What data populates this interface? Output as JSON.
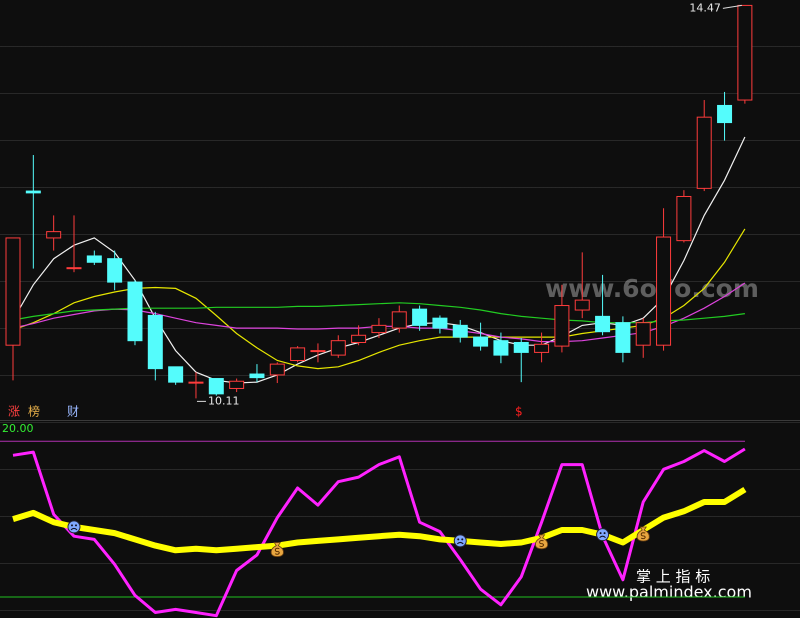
{
  "chart_data": [
    {
      "type": "candlestick",
      "up_color": "#ff3c3c",
      "down_color": "#54fcfc",
      "ylim": [
        9.87,
        14.53
      ],
      "open": [
        10.7,
        12.41,
        11.89,
        11.55,
        11.69,
        11.66,
        11.4,
        11.03,
        10.46,
        10.28,
        10.33,
        10.22,
        10.38,
        10.37,
        10.53,
        10.63,
        10.59,
        10.73,
        10.84,
        10.89,
        11.1,
        11.0,
        10.92,
        10.79,
        10.75,
        10.73,
        10.62,
        10.69,
        11.09,
        11.02,
        10.95,
        10.7,
        10.7,
        11.86,
        12.44,
        13.36,
        13.42
      ],
      "high": [
        11.89,
        12.81,
        12.14,
        12.14,
        11.75,
        11.75,
        11.42,
        11.07,
        10.46,
        10.4,
        10.33,
        10.33,
        10.49,
        10.51,
        10.69,
        10.72,
        10.81,
        10.92,
        11.0,
        11.14,
        11.14,
        11.03,
        10.98,
        10.95,
        10.84,
        10.78,
        10.84,
        11.37,
        11.73,
        11.48,
        11.02,
        11.0,
        12.22,
        12.42,
        13.42,
        13.51,
        14.47
      ],
      "low": [
        10.31,
        11.55,
        11.75,
        11.51,
        11.59,
        11.31,
        10.7,
        10.31,
        10.26,
        10.11,
        10.14,
        10.18,
        10.29,
        10.28,
        10.51,
        10.51,
        10.56,
        10.7,
        10.78,
        10.84,
        10.86,
        10.83,
        10.73,
        10.64,
        10.5,
        10.29,
        10.51,
        10.62,
        11.0,
        10.81,
        10.51,
        10.56,
        10.64,
        11.84,
        12.41,
        12.97,
        13.38
      ],
      "close": [
        11.89,
        12.39,
        11.96,
        11.56,
        11.62,
        11.4,
        10.75,
        10.44,
        10.29,
        10.29,
        10.16,
        10.3,
        10.34,
        10.49,
        10.67,
        10.64,
        10.75,
        10.81,
        10.92,
        11.07,
        10.92,
        10.89,
        10.79,
        10.69,
        10.59,
        10.62,
        10.71,
        11.14,
        11.2,
        10.85,
        10.62,
        10.95,
        11.9,
        12.35,
        13.23,
        13.17,
        14.47
      ],
      "lines": [
        {
          "color": "#f0f0f0",
          "values": [
            10.98,
            11.37,
            11.66,
            11.81,
            11.89,
            11.73,
            11.42,
            11.0,
            10.64,
            10.4,
            10.31,
            10.28,
            10.29,
            10.37,
            10.49,
            10.59,
            10.67,
            10.73,
            10.81,
            10.89,
            10.94,
            10.95,
            10.92,
            10.84,
            10.75,
            10.7,
            10.7,
            10.8,
            10.92,
            10.95,
            10.92,
            11.0,
            11.22,
            11.64,
            12.14,
            12.53,
            13.01
          ]
        },
        {
          "color": "#e6e600",
          "values": [
            10.87,
            10.95,
            11.05,
            11.17,
            11.24,
            11.29,
            11.33,
            11.34,
            11.33,
            11.22,
            11.03,
            10.83,
            10.67,
            10.53,
            10.47,
            10.44,
            10.46,
            10.53,
            10.62,
            10.7,
            10.75,
            10.79,
            10.79,
            10.79,
            10.79,
            10.79,
            10.79,
            10.79,
            10.83,
            10.86,
            10.89,
            10.92,
            11.0,
            11.14,
            11.33,
            11.62,
            11.99
          ]
        },
        {
          "color": "#dd44dd",
          "values": [
            10.89,
            10.94,
            11.0,
            11.04,
            11.08,
            11.1,
            11.09,
            11.05,
            11.0,
            10.95,
            10.92,
            10.89,
            10.89,
            10.89,
            10.88,
            10.88,
            10.89,
            10.89,
            10.91,
            10.91,
            10.89,
            10.89,
            10.86,
            10.83,
            10.79,
            10.77,
            10.74,
            10.74,
            10.75,
            10.78,
            10.81,
            10.84,
            10.91,
            11.0,
            11.11,
            11.24,
            11.39
          ]
        },
        {
          "color": "#22cc22",
          "values": [
            10.98,
            11.02,
            11.05,
            11.08,
            11.09,
            11.1,
            11.11,
            11.11,
            11.11,
            11.11,
            11.12,
            11.12,
            11.12,
            11.12,
            11.13,
            11.13,
            11.14,
            11.15,
            11.16,
            11.17,
            11.16,
            11.14,
            11.12,
            11.09,
            11.05,
            11.02,
            11.0,
            10.98,
            10.97,
            10.95,
            10.95,
            10.95,
            10.97,
            10.98,
            11.0,
            11.02,
            11.05
          ]
        }
      ],
      "tags": [
        "涨",
        "榜",
        "财",
        "$"
      ],
      "tag_colors": [
        "#ff4040",
        "#e8b04a",
        "#9ab8ff",
        "#ff2020"
      ]
    },
    {
      "type": "line",
      "label": "20.00",
      "label_color": "#33ee33",
      "ylim": [
        -13.5,
        113
      ],
      "hlines": [
        {
          "value": 100,
          "color": "#b030b0"
        },
        {
          "value": 0,
          "color": "#20c020"
        }
      ],
      "series": [
        {
          "color": "#ff22ff",
          "width": 3,
          "values": [
            91,
            93,
            53,
            39,
            37,
            21,
            1,
            -10,
            -8,
            -10,
            -12,
            17,
            27,
            51,
            70,
            59,
            74,
            77,
            85,
            90,
            48,
            42,
            24,
            5,
            -5,
            13,
            48,
            85,
            85,
            39,
            11,
            61,
            82,
            87,
            94,
            87,
            95
          ]
        },
        {
          "color": "#ffff00",
          "width": 6,
          "values": [
            50,
            54,
            48,
            45,
            43,
            41,
            37,
            33,
            30,
            31,
            30,
            31,
            32,
            33,
            35,
            36,
            37,
            38,
            39,
            40,
            39,
            37,
            36,
            35,
            34,
            35,
            38,
            43,
            43,
            40,
            35,
            43,
            51,
            55,
            61,
            61,
            69
          ]
        }
      ],
      "sell_signals": [
        3,
        22,
        29
      ],
      "buy_signals": [
        13,
        26,
        31
      ]
    }
  ],
  "watermarks": [
    "www.6o7o.com",
    "掌 上 指 标",
    "www.palmindex.com"
  ]
}
